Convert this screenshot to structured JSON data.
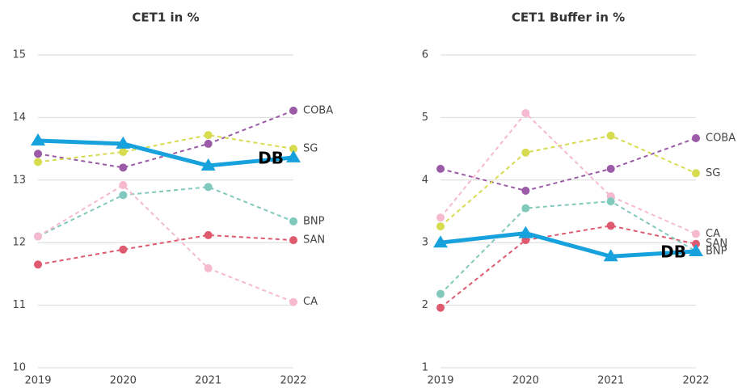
{
  "chart_data": [
    {
      "type": "line",
      "title": "CET1 in %",
      "categories": [
        "2019",
        "2020",
        "2021",
        "2022"
      ],
      "ylim": [
        10,
        15
      ],
      "yticks": [
        10,
        11,
        12,
        13,
        14,
        15
      ],
      "grid": true,
      "series": [
        {
          "name": "COBA",
          "color": "#9b5ba6",
          "dashed": true,
          "values": [
            13.42,
            13.2,
            13.58,
            14.11
          ]
        },
        {
          "name": "SG",
          "color": "#d6dc4e",
          "dashed": true,
          "values": [
            13.29,
            13.45,
            13.72,
            13.5
          ]
        },
        {
          "name": "BNP",
          "color": "#80c9bc",
          "dashed": true,
          "values": [
            12.1,
            12.76,
            12.89,
            12.34
          ]
        },
        {
          "name": "SAN",
          "color": "#de5a6f",
          "dashed": true,
          "values": [
            11.65,
            11.89,
            12.12,
            12.04
          ]
        },
        {
          "name": "CA",
          "color": "#f5b9d0",
          "dashed": true,
          "values": [
            12.1,
            12.92,
            11.59,
            11.05
          ]
        },
        {
          "name": "DB",
          "color": "#17a1dd",
          "dashed": false,
          "values": [
            13.63,
            13.58,
            13.23,
            13.36
          ]
        }
      ]
    },
    {
      "type": "line",
      "title": "CET1 Buffer in %",
      "categories": [
        "2019",
        "2020",
        "2021",
        "2022"
      ],
      "ylim": [
        1,
        6
      ],
      "yticks": [
        1,
        2,
        3,
        4,
        5,
        6
      ],
      "grid": true,
      "series": [
        {
          "name": "COBA",
          "color": "#9b5ba6",
          "dashed": true,
          "values": [
            4.18,
            3.83,
            4.18,
            4.67
          ]
        },
        {
          "name": "SG",
          "color": "#d6dc4e",
          "dashed": true,
          "values": [
            3.26,
            4.44,
            4.71,
            4.11
          ]
        },
        {
          "name": "CA",
          "color": "#f5b9d0",
          "dashed": true,
          "values": [
            3.4,
            5.07,
            3.74,
            3.14
          ]
        },
        {
          "name": "SAN",
          "color": "#de5a6f",
          "dashed": true,
          "values": [
            1.96,
            3.04,
            3.27,
            2.98
          ]
        },
        {
          "name": "BNP",
          "color": "#80c9bc",
          "dashed": true,
          "values": [
            2.18,
            3.55,
            3.66,
            2.86
          ]
        },
        {
          "name": "DB",
          "color": "#17a1dd",
          "dashed": false,
          "values": [
            3.0,
            3.15,
            2.78,
            2.86
          ]
        }
      ]
    }
  ]
}
